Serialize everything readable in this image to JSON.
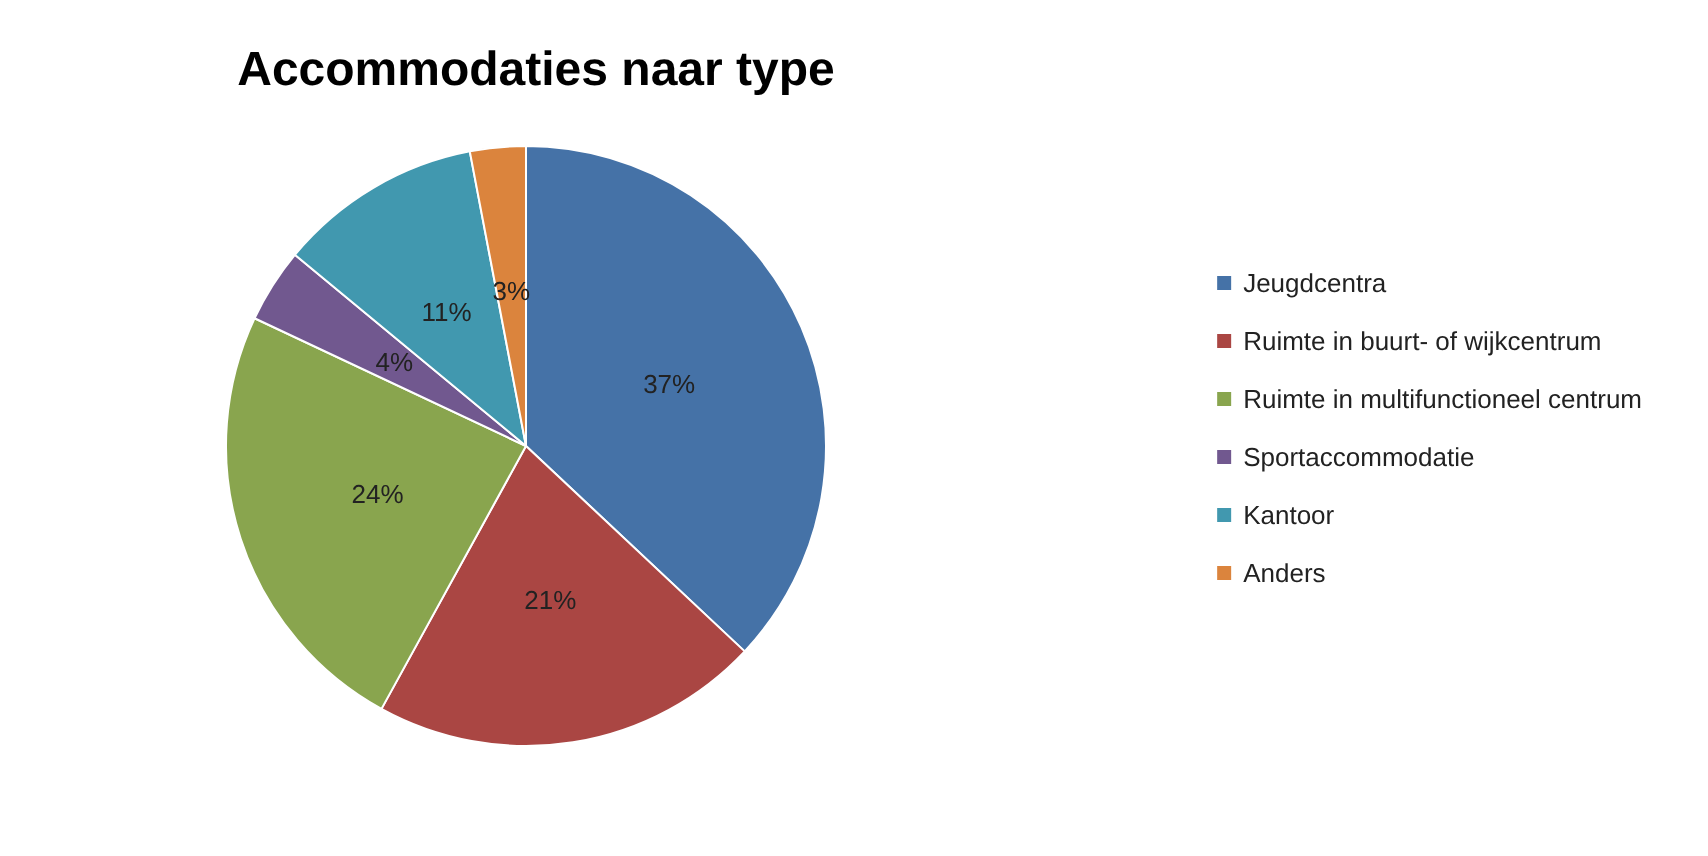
{
  "chart_data": {
    "type": "pie",
    "title": "Accommodaties naar type",
    "categories": [
      "Jeugdcentra",
      "Ruimte in buurt- of wijkcentrum",
      "Ruimte in multifunctioneel centrum",
      "Sportaccommodatie",
      "Kantoor",
      "Anders"
    ],
    "values": [
      37,
      21,
      24,
      4,
      11,
      3
    ],
    "value_labels": [
      "37%",
      "21%",
      "24%",
      "4%",
      "11%",
      "3%"
    ],
    "colors": [
      "#4572a7",
      "#aa4643",
      "#89a54e",
      "#71588f",
      "#4198af",
      "#db843d"
    ],
    "legend": "right"
  }
}
